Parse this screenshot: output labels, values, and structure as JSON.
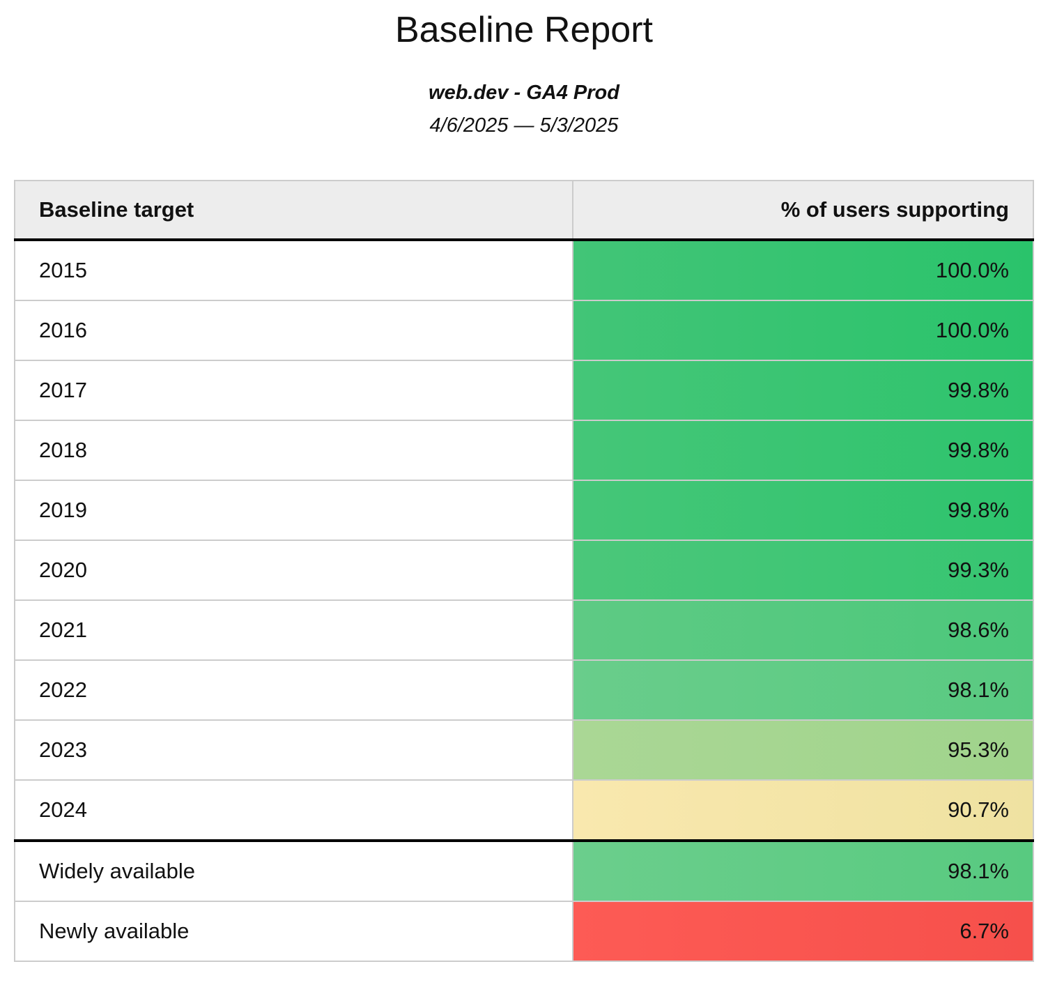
{
  "report": {
    "title": "Baseline Report",
    "subtitle": "web.dev - GA4 Prod",
    "date_range": "4/6/2025 — 5/3/2025"
  },
  "table": {
    "columns": [
      {
        "label": "Baseline target"
      },
      {
        "label": "% of users supporting"
      }
    ],
    "rows": [
      {
        "target": "2015",
        "value": "100.0%",
        "color_left": "#42c577",
        "color_right": "#2ac36b",
        "divider_after": false
      },
      {
        "target": "2016",
        "value": "100.0%",
        "color_left": "#42c577",
        "color_right": "#2ac36b",
        "divider_after": false
      },
      {
        "target": "2017",
        "value": "99.8%",
        "color_left": "#45c678",
        "color_right": "#2ec46d",
        "divider_after": false
      },
      {
        "target": "2018",
        "value": "99.8%",
        "color_left": "#45c678",
        "color_right": "#2ec46d",
        "divider_after": false
      },
      {
        "target": "2019",
        "value": "99.8%",
        "color_left": "#45c678",
        "color_right": "#2ec46d",
        "divider_after": false
      },
      {
        "target": "2020",
        "value": "99.3%",
        "color_left": "#4bc77a",
        "color_right": "#36c571",
        "divider_after": false
      },
      {
        "target": "2021",
        "value": "98.6%",
        "color_left": "#5eca84",
        "color_right": "#4cc87b",
        "divider_after": false
      },
      {
        "target": "2022",
        "value": "98.1%",
        "color_left": "#69cd8b",
        "color_right": "#59ca81",
        "divider_after": false
      },
      {
        "target": "2023",
        "value": "95.3%",
        "color_left": "#aad795",
        "color_right": "#a0d48c",
        "divider_after": false
      },
      {
        "target": "2024",
        "value": "90.7%",
        "color_left": "#f9e8ae",
        "color_right": "#efe2a1",
        "divider_after": true
      },
      {
        "target": "Widely available",
        "value": "98.1%",
        "color_left": "#6bce8c",
        "color_right": "#58ca80",
        "divider_after": false
      },
      {
        "target": "Newly available",
        "value": "6.7%",
        "color_left": "#fd5b55",
        "color_right": "#f6504b",
        "divider_after": false
      }
    ]
  },
  "colors": {
    "header_bg": "#ededed",
    "grid_border": "#cccccc",
    "section_divider": "#000000",
    "text": "#111111",
    "page_bg": "#ffffff"
  }
}
